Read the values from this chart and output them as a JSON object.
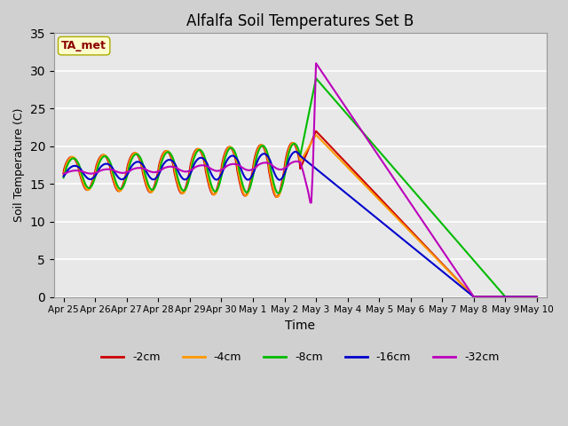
{
  "title": "Alfalfa Soil Temperatures Set B",
  "xlabel": "Time",
  "ylabel": "Soil Temperature (C)",
  "ylim": [
    0,
    35
  ],
  "x_tick_labels": [
    "Apr 25",
    "Apr 26",
    "Apr 27",
    "Apr 28",
    "Apr 29",
    "Apr 30",
    "May 1",
    "May 2",
    "May 3",
    "May 4",
    "May 5",
    "May 6",
    "May 7",
    "May 8",
    "May 9",
    "May 10"
  ],
  "ta_met_label": "TA_met",
  "fig_bg": "#d0d0d0",
  "plot_bg": "#e8e8e8",
  "grid_color": "#ffffff",
  "series_colors": {
    "-2cm": "#cc0000",
    "-4cm": "#ff9900",
    "-8cm": "#00bb00",
    "-16cm": "#0000cc",
    "-32cm": "#bb00bb"
  }
}
